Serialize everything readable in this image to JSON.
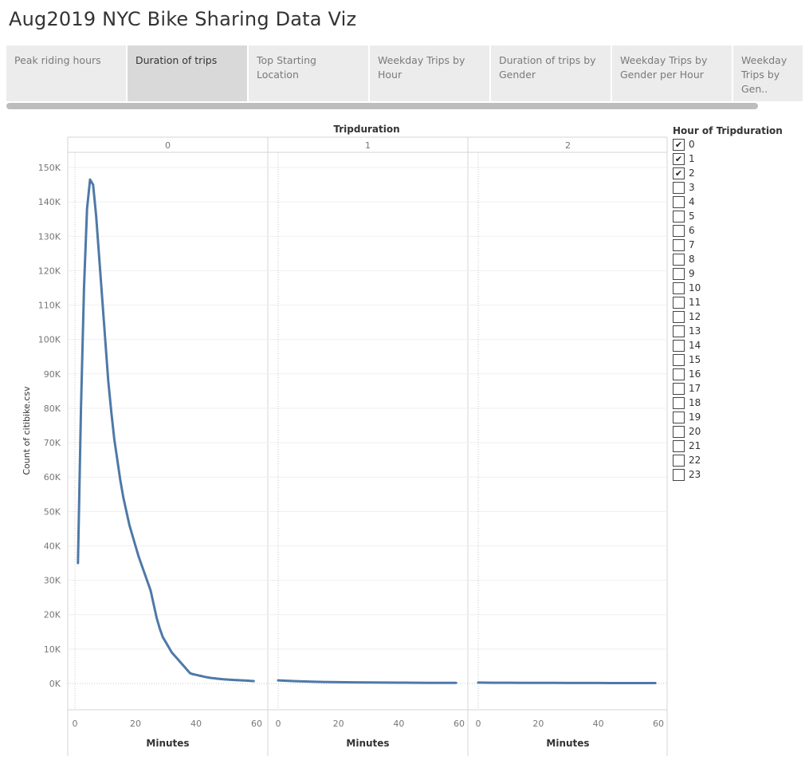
{
  "title": "Aug2019 NYC Bike Sharing Data Viz",
  "tabs": [
    {
      "label": "Peak riding hours",
      "active": false
    },
    {
      "label": "Duration of trips",
      "active": true
    },
    {
      "label": "Top Starting Location",
      "active": false
    },
    {
      "label": "Weekday Trips by Hour",
      "active": false
    },
    {
      "label": "Duration of trips by Gender",
      "active": false
    },
    {
      "label": "Weekday Trips by Gender per Hour",
      "active": false
    },
    {
      "label": "Weekday Trips by Gen..",
      "active": false
    }
  ],
  "colors": {
    "line": "#4e79a7",
    "active_tab": "#d9d9d9",
    "tab": "#ececec"
  },
  "legend": {
    "title": "Hour of Tripduration",
    "items": [
      {
        "label": "0",
        "checked": true
      },
      {
        "label": "1",
        "checked": true
      },
      {
        "label": "2",
        "checked": true
      },
      {
        "label": "3",
        "checked": false
      },
      {
        "label": "4",
        "checked": false
      },
      {
        "label": "5",
        "checked": false
      },
      {
        "label": "6",
        "checked": false
      },
      {
        "label": "7",
        "checked": false
      },
      {
        "label": "8",
        "checked": false
      },
      {
        "label": "9",
        "checked": false
      },
      {
        "label": "10",
        "checked": false
      },
      {
        "label": "11",
        "checked": false
      },
      {
        "label": "12",
        "checked": false
      },
      {
        "label": "13",
        "checked": false
      },
      {
        "label": "14",
        "checked": false
      },
      {
        "label": "15",
        "checked": false
      },
      {
        "label": "16",
        "checked": false
      },
      {
        "label": "17",
        "checked": false
      },
      {
        "label": "18",
        "checked": false
      },
      {
        "label": "19",
        "checked": false
      },
      {
        "label": "20",
        "checked": false
      },
      {
        "label": "21",
        "checked": false
      },
      {
        "label": "22",
        "checked": false
      },
      {
        "label": "23",
        "checked": false
      }
    ]
  },
  "chart_data": {
    "type": "line",
    "title": "Tripduration",
    "xlabel": "Minutes",
    "ylabel": "Count of citibike.csv",
    "xlim": [
      0,
      60
    ],
    "ylim": [
      0,
      150000
    ],
    "x_ticks": [
      0,
      20,
      40,
      60
    ],
    "y_ticks": [
      0,
      10000,
      20000,
      30000,
      40000,
      50000,
      60000,
      70000,
      80000,
      90000,
      100000,
      110000,
      120000,
      130000,
      140000,
      150000
    ],
    "y_tick_labels": [
      "0K",
      "10K",
      "20K",
      "30K",
      "40K",
      "50K",
      "60K",
      "70K",
      "80K",
      "90K",
      "100K",
      "110K",
      "120K",
      "130K",
      "140K",
      "150K"
    ],
    "grid": true,
    "panels": [
      {
        "name": "0",
        "x": [
          1,
          2,
          3,
          4,
          5,
          6,
          7,
          8,
          9,
          10,
          11,
          12,
          13,
          14,
          15,
          16,
          17,
          18,
          19,
          20,
          21,
          22,
          23,
          24,
          25,
          26,
          27,
          28,
          29,
          30,
          31,
          32,
          33,
          34,
          35,
          36,
          37,
          38,
          39,
          40,
          41,
          42,
          43,
          44,
          45,
          46,
          47,
          48,
          49,
          50,
          51,
          52,
          53,
          54,
          55,
          56,
          57,
          58,
          59
        ],
        "y": [
          35000,
          80000,
          115000,
          138000,
          146500,
          145000,
          136000,
          124000,
          112000,
          100000,
          88000,
          79000,
          71000,
          65000,
          59000,
          54000,
          50000,
          46000,
          43000,
          40000,
          37000,
          34500,
          32000,
          29500,
          27000,
          23000,
          19000,
          16000,
          13500,
          12000,
          10500,
          9000,
          8000,
          7000,
          6000,
          5000,
          4000,
          3000,
          2700,
          2500,
          2300,
          2100,
          1900,
          1750,
          1600,
          1500,
          1400,
          1300,
          1200,
          1150,
          1100,
          1050,
          1000,
          950,
          900,
          850,
          800,
          750,
          700
        ]
      },
      {
        "name": "1",
        "x": [
          0,
          5,
          10,
          15,
          20,
          25,
          30,
          35,
          40,
          45,
          50,
          55,
          59
        ],
        "y": [
          900,
          700,
          550,
          450,
          380,
          330,
          290,
          260,
          230,
          210,
          190,
          170,
          160
        ]
      },
      {
        "name": "2",
        "x": [
          0,
          5,
          10,
          15,
          20,
          25,
          30,
          35,
          40,
          45,
          50,
          55,
          59
        ],
        "y": [
          250,
          220,
          200,
          180,
          170,
          160,
          150,
          140,
          130,
          125,
          120,
          115,
          110
        ]
      }
    ]
  }
}
